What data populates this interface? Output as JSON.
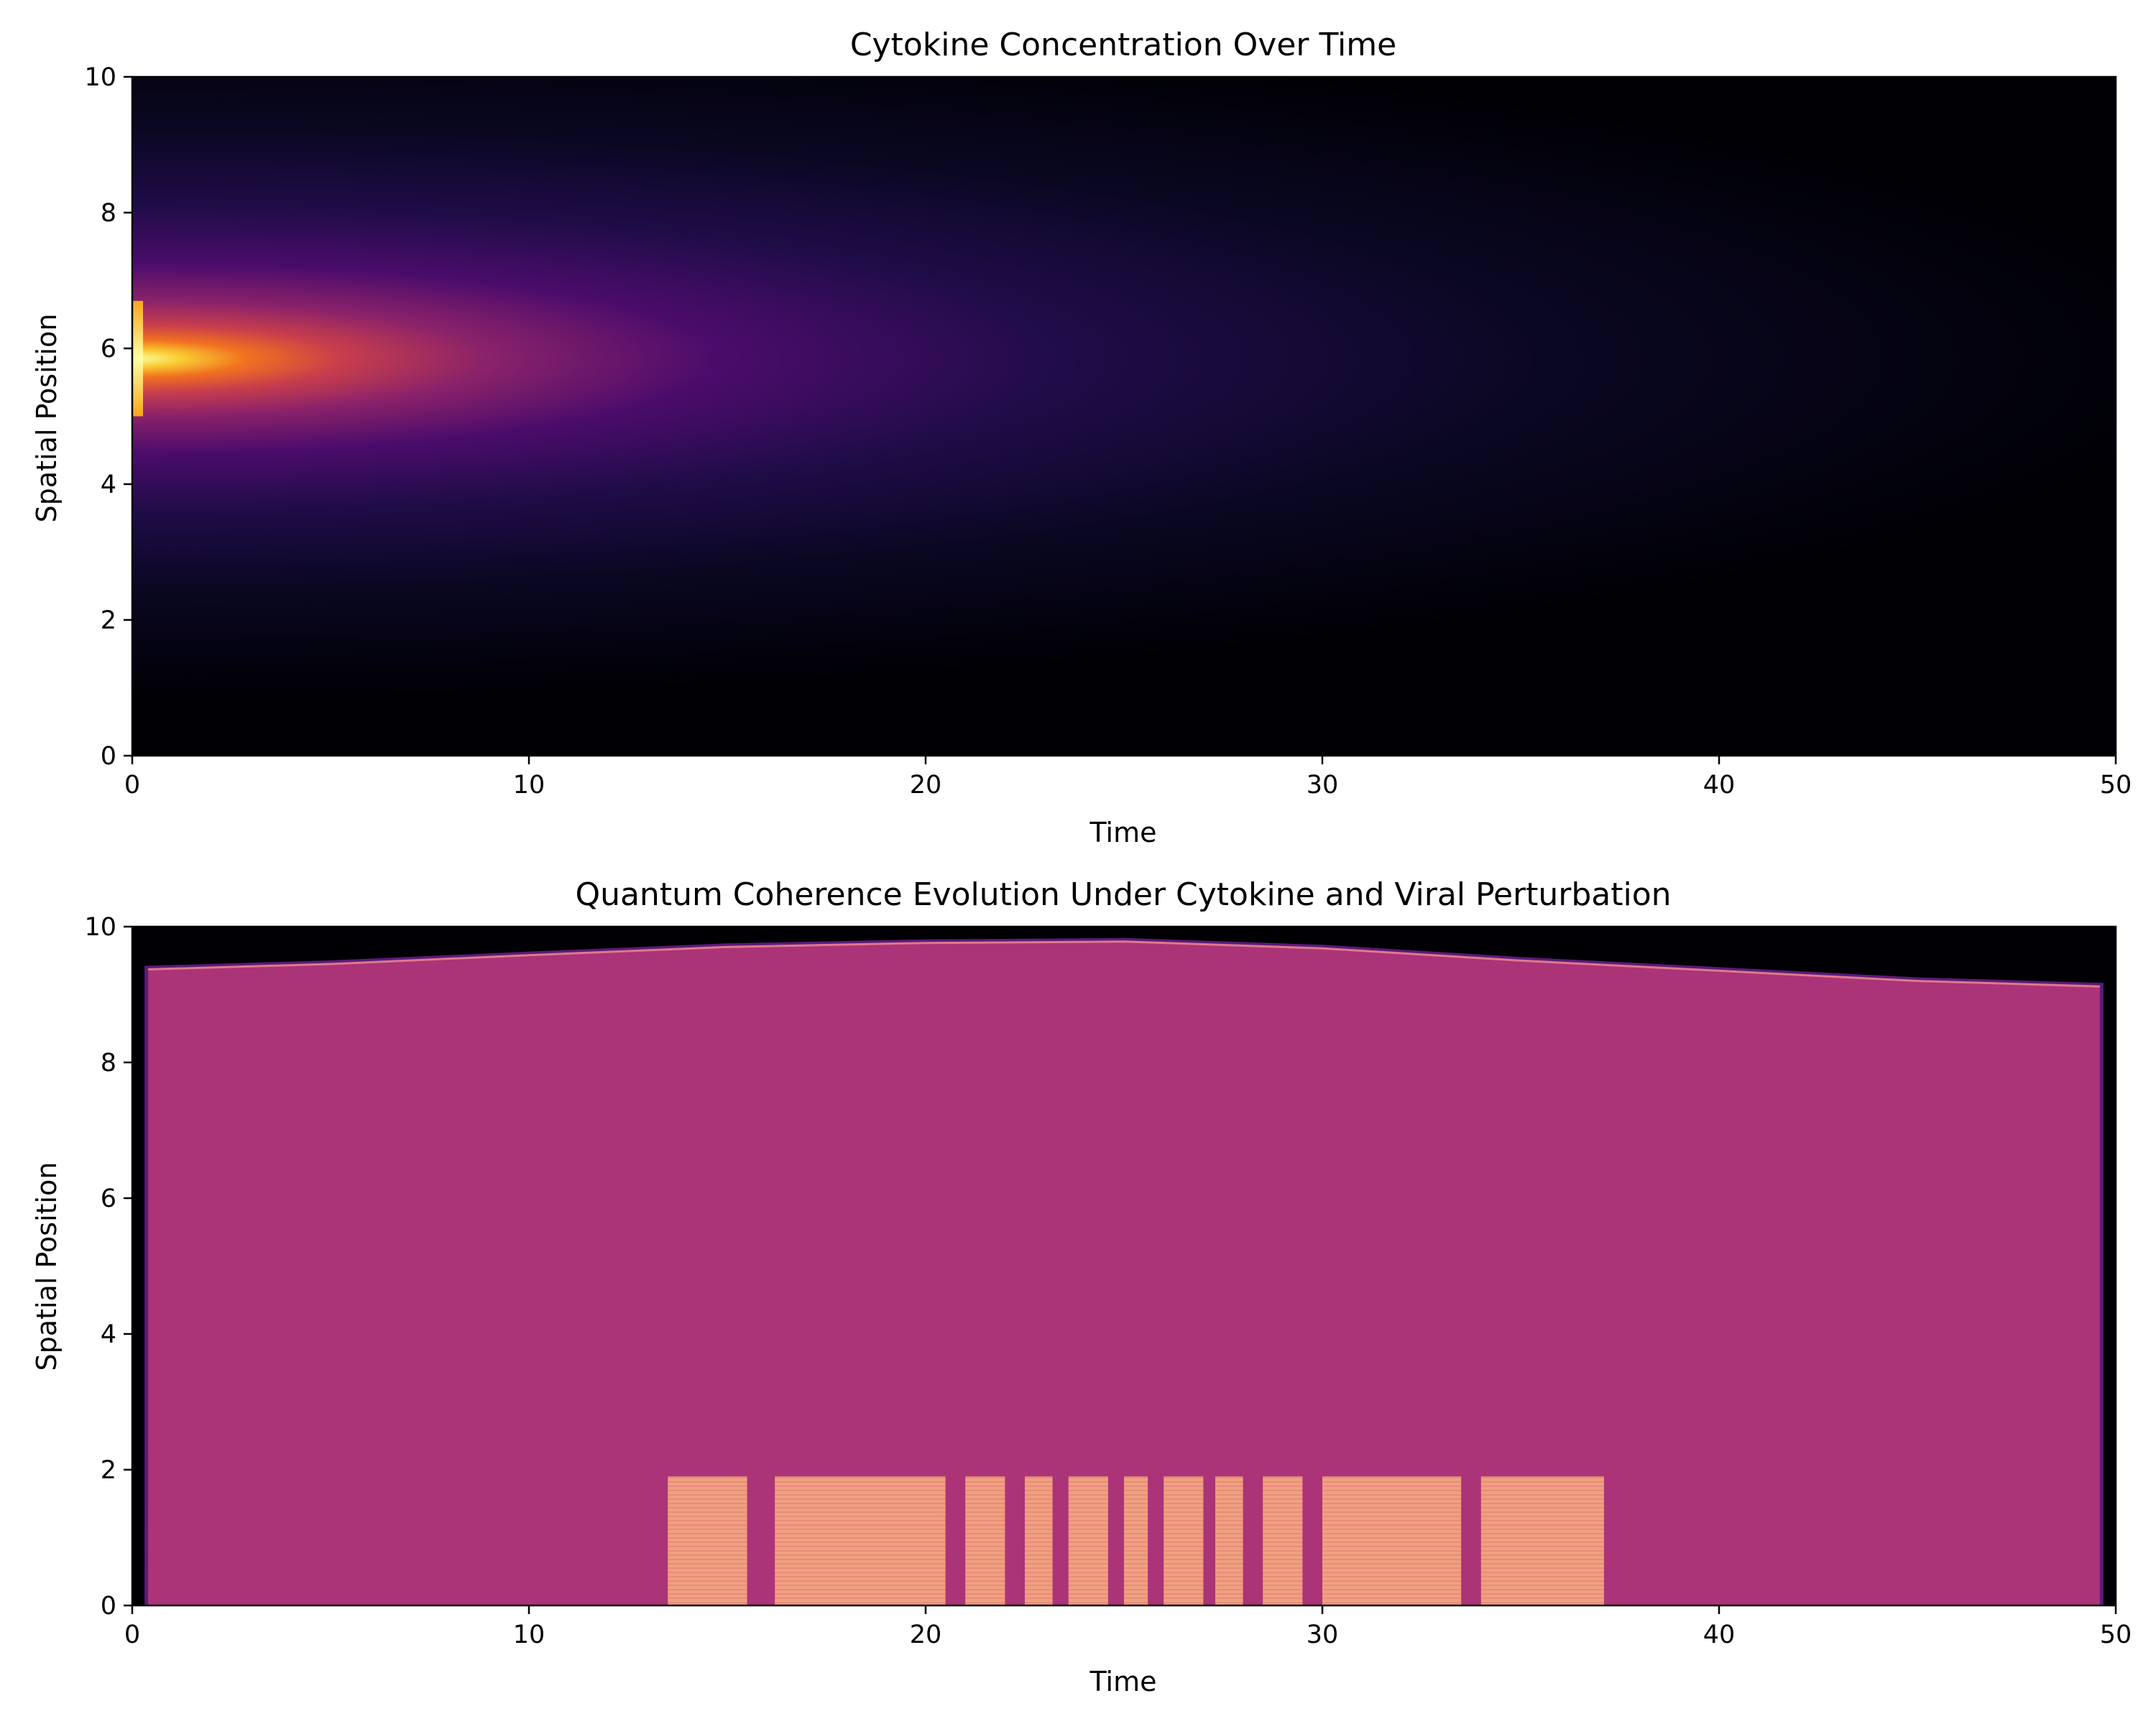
{
  "chart_data": [
    {
      "type": "heatmap",
      "title": "Cytokine Concentration Over Time",
      "xlabel": "Time",
      "ylabel": "Spatial Position",
      "xlim": [
        0,
        50
      ],
      "ylim": [
        0,
        10
      ],
      "xticks": [
        0,
        10,
        20,
        30,
        40,
        50
      ],
      "yticks": [
        0,
        2,
        4,
        6,
        8,
        10
      ],
      "colormap": "inferno",
      "grid": false,
      "description_of_field": {
        "source_center_position": 5.85,
        "initial_core_range": [
          5.0,
          6.7
        ],
        "peak_time": 0,
        "decay": "diffuses and fades with time; near black after ~35"
      }
    },
    {
      "type": "heatmap",
      "title": "Quantum Coherence Evolution Under Cytokine and Viral Perturbation",
      "xlabel": "Time",
      "ylabel": "Spatial Position",
      "xlim": [
        0,
        50
      ],
      "ylim": [
        0,
        10
      ],
      "xticks": [
        0,
        10,
        20,
        30,
        40,
        50
      ],
      "yticks": [
        0,
        2,
        4,
        6,
        8,
        10
      ],
      "colormap": "magma",
      "grid": false,
      "coherent_region": {
        "time_range": [
          0.4,
          49.6
        ],
        "upper_boundary": [
          [
            0.4,
            9.37
          ],
          [
            5,
            9.45
          ],
          [
            10,
            9.58
          ],
          [
            15,
            9.7
          ],
          [
            20,
            9.76
          ],
          [
            25,
            9.78
          ],
          [
            30,
            9.68
          ],
          [
            35,
            9.5
          ],
          [
            40,
            9.35
          ],
          [
            45,
            9.2
          ],
          [
            49.6,
            9.12
          ]
        ],
        "fill_color": "#ab3378"
      },
      "perturbation_band": {
        "position_range": [
          0,
          1.9
        ],
        "fill_color": "#f0a080",
        "time_segments": [
          [
            13.5,
            15.5
          ],
          [
            16.2,
            20.5
          ],
          [
            21.0,
            22.0
          ],
          [
            22.5,
            23.2
          ],
          [
            23.6,
            24.6
          ],
          [
            25.0,
            25.6
          ],
          [
            26.0,
            27.0
          ],
          [
            27.3,
            28.0
          ],
          [
            28.5,
            29.5
          ],
          [
            30.0,
            33.5
          ],
          [
            34.0,
            37.1
          ]
        ]
      }
    }
  ]
}
